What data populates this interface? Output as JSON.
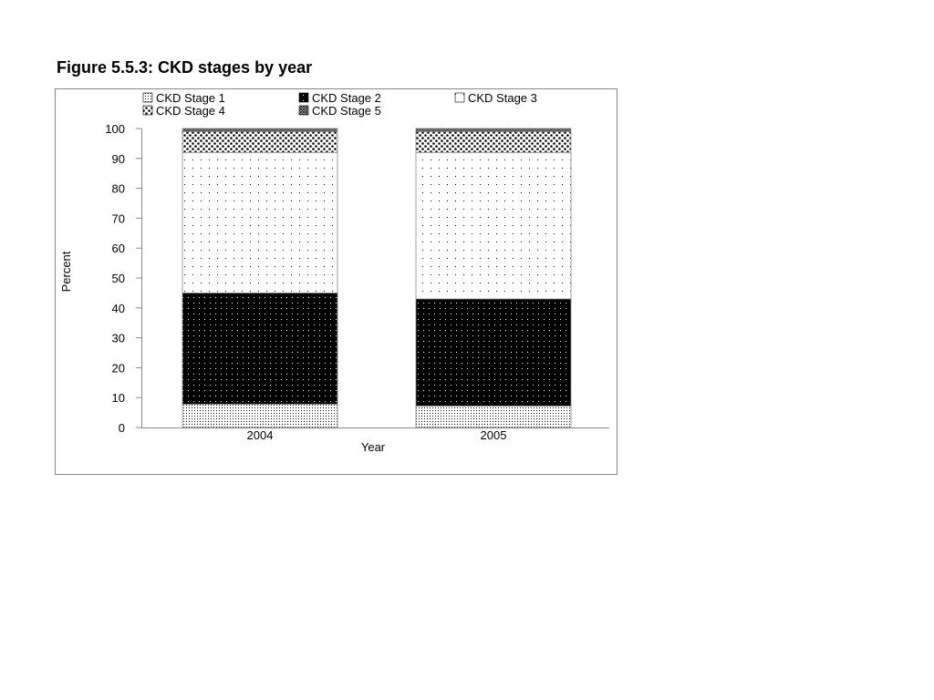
{
  "figure_title": "Figure 5.5.3: CKD stages by year",
  "chart_data": {
    "type": "bar",
    "stacked": true,
    "categories": [
      "2004",
      "2005"
    ],
    "series": [
      {
        "name": "CKD Stage 1",
        "values": [
          7.8,
          7.2
        ],
        "pattern": "fine-dots"
      },
      {
        "name": "CKD Stage 2",
        "values": [
          37.2,
          35.8
        ],
        "pattern": "black-dots"
      },
      {
        "name": "CKD Stage 3",
        "values": [
          47.0,
          49.0
        ],
        "pattern": "sparse-dots"
      },
      {
        "name": "CKD Stage 4",
        "values": [
          7.0,
          7.0
        ],
        "pattern": "coarse-dots"
      },
      {
        "name": "CKD Stage 5",
        "values": [
          1.0,
          1.0
        ],
        "pattern": "crosshatch"
      }
    ],
    "xlabel": "Year",
    "ylabel": "Percent",
    "ylim": [
      0,
      100
    ],
    "yticks": [
      0,
      10,
      20,
      30,
      40,
      50,
      60,
      70,
      80,
      90,
      100
    ],
    "grid": false,
    "legend_position": "top"
  }
}
